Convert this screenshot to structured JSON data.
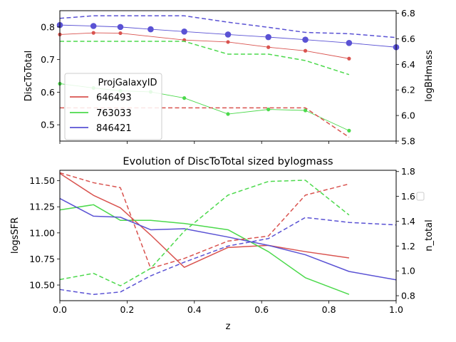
{
  "colors": {
    "646493": "#d9534f",
    "763033": "#4cd94c",
    "846421": "#5a52d4",
    "axis": "#000000",
    "background": "#ffffff"
  },
  "chart_data": [
    {
      "type": "line",
      "title": "",
      "xlabel": "",
      "ylabel": "DiscToTotal",
      "ylabel_right": "logBHmass",
      "xlim": [
        0,
        1
      ],
      "ylim": [
        0.45,
        0.85
      ],
      "ylim_right": [
        5.8,
        6.82
      ],
      "yticks": [
        0.5,
        0.6,
        0.7,
        0.8
      ],
      "yticks_right": [
        5.8,
        6.0,
        6.2,
        6.4,
        6.6,
        6.8
      ],
      "show_xticklabels": false,
      "legend": {
        "title": "ProjGalaxyID",
        "placement": "lower-left",
        "entries": [
          "646493",
          "763033",
          "846421"
        ]
      },
      "series": [
        {
          "name": "646493",
          "axis": "left",
          "style": "solid-markers",
          "marker_size": "small",
          "x": [
            0,
            0.1,
            0.18,
            0.37,
            0.5,
            0.62,
            0.73,
            0.86
          ],
          "y": [
            0.777,
            0.782,
            0.781,
            0.76,
            0.754,
            0.738,
            0.727,
            0.703
          ]
        },
        {
          "name": "763033",
          "axis": "left",
          "style": "solid-markers",
          "marker_size": "small",
          "x": [
            0,
            0.1,
            0.18,
            0.27,
            0.37,
            0.5,
            0.62,
            0.73,
            0.86
          ],
          "y": [
            0.626,
            0.613,
            0.604,
            0.601,
            0.582,
            0.533,
            0.547,
            0.544,
            0.482
          ]
        },
        {
          "name": "846421",
          "axis": "left",
          "style": "solid-markers",
          "marker_size": "large",
          "x": [
            0,
            0.1,
            0.18,
            0.27,
            0.37,
            0.5,
            0.62,
            0.73,
            0.86,
            1.0
          ],
          "y": [
            0.806,
            0.803,
            0.8,
            0.793,
            0.786,
            0.777,
            0.769,
            0.761,
            0.751,
            0.738
          ]
        },
        {
          "name": "646493",
          "axis": "right",
          "style": "dashed",
          "x": [
            0,
            0.1,
            0.18,
            0.27,
            0.37,
            0.5,
            0.62,
            0.73,
            0.86
          ],
          "y": [
            6.06,
            6.06,
            6.06,
            6.06,
            6.06,
            6.06,
            6.06,
            6.06,
            5.83
          ]
        },
        {
          "name": "763033",
          "axis": "right",
          "style": "dashed",
          "x": [
            0,
            0.1,
            0.18,
            0.27,
            0.37,
            0.5,
            0.62,
            0.73,
            0.86
          ],
          "y": [
            6.58,
            6.58,
            6.58,
            6.58,
            6.58,
            6.48,
            6.48,
            6.43,
            6.32
          ]
        },
        {
          "name": "846421",
          "axis": "right",
          "style": "dashed",
          "x": [
            0,
            0.1,
            0.18,
            0.27,
            0.37,
            0.5,
            0.62,
            0.73,
            0.86,
            1.0
          ],
          "y": [
            6.76,
            6.78,
            6.78,
            6.78,
            6.78,
            6.73,
            6.69,
            6.65,
            6.64,
            6.61
          ]
        }
      ]
    },
    {
      "type": "line",
      "title": "Evolution of DiscToTotal sized bylogmass",
      "xlabel": "z",
      "ylabel": "logsSFR",
      "ylabel_right": "n_total",
      "xlim": [
        0,
        1
      ],
      "ylim": [
        10.35,
        11.6
      ],
      "ylim_right": [
        0.76,
        1.81
      ],
      "xticks": [
        0.0,
        0.2,
        0.4,
        0.6,
        0.8,
        1.0
      ],
      "xtick_labels": [
        "0.0",
        "0.2",
        "0.4",
        "0.6",
        "0.8",
        "1.0"
      ],
      "yticks": [
        10.5,
        10.75,
        11.0,
        11.25,
        11.5
      ],
      "ytick_labels": [
        "10.50",
        "10.75",
        "11.00",
        "11.25",
        "11.50"
      ],
      "yticks_right": [
        0.8,
        1.0,
        1.2,
        1.4,
        1.6,
        1.8
      ],
      "legend": {
        "title": "",
        "placement": "right-outside",
        "entries": []
      },
      "series": [
        {
          "name": "646493",
          "axis": "left",
          "style": "solid",
          "x": [
            0,
            0.1,
            0.18,
            0.27,
            0.37,
            0.5,
            0.62,
            0.73,
            0.86
          ],
          "y": [
            11.57,
            11.36,
            11.24,
            10.98,
            10.67,
            10.86,
            10.88,
            10.82,
            10.76
          ]
        },
        {
          "name": "763033",
          "axis": "left",
          "style": "solid",
          "x": [
            0,
            0.1,
            0.18,
            0.27,
            0.37,
            0.5,
            0.62,
            0.73,
            0.86
          ],
          "y": [
            11.22,
            11.27,
            11.12,
            11.12,
            11.09,
            11.03,
            10.82,
            10.57,
            10.41
          ]
        },
        {
          "name": "846421",
          "axis": "left",
          "style": "solid",
          "x": [
            0,
            0.1,
            0.18,
            0.27,
            0.37,
            0.5,
            0.62,
            0.73,
            0.86,
            1.0
          ],
          "y": [
            11.33,
            11.16,
            11.15,
            11.03,
            11.04,
            10.96,
            10.88,
            10.79,
            10.63,
            10.55
          ]
        },
        {
          "name": "646493",
          "axis": "right",
          "style": "dashed",
          "x": [
            0,
            0.1,
            0.18,
            0.27,
            0.37,
            0.5,
            0.62,
            0.73,
            0.86
          ],
          "y": [
            1.79,
            1.71,
            1.67,
            1.02,
            1.1,
            1.24,
            1.28,
            1.61,
            1.7
          ]
        },
        {
          "name": "763033",
          "axis": "right",
          "style": "dashed",
          "x": [
            0,
            0.1,
            0.18,
            0.27,
            0.37,
            0.5,
            0.62,
            0.73,
            0.86
          ],
          "y": [
            0.93,
            0.98,
            0.88,
            1.02,
            1.32,
            1.61,
            1.72,
            1.73,
            1.45
          ]
        },
        {
          "name": "846421",
          "axis": "right",
          "style": "dashed",
          "x": [
            0,
            0.1,
            0.18,
            0.27,
            0.37,
            0.5,
            0.62,
            0.73,
            0.86,
            1.0
          ],
          "y": [
            0.85,
            0.81,
            0.83,
            0.96,
            1.07,
            1.2,
            1.26,
            1.43,
            1.39,
            1.37
          ]
        }
      ]
    }
  ]
}
